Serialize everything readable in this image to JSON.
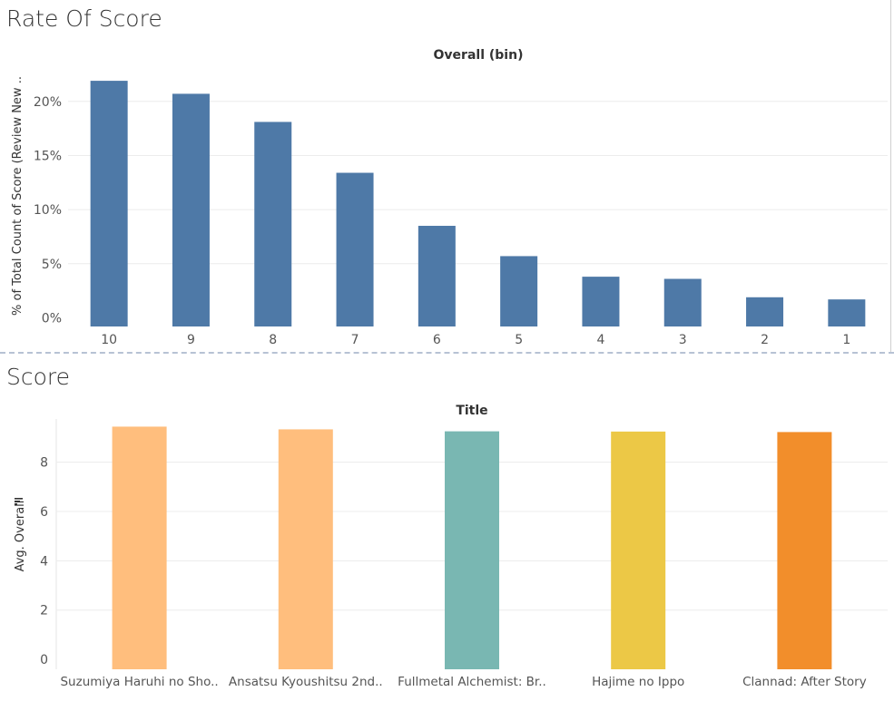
{
  "dashboard": {
    "top_pane_title": "Rate Of Score",
    "bottom_pane_title": "Score"
  },
  "chart_data": [
    {
      "type": "bar",
      "title": "Rate Of Score",
      "column_header": "Overall (bin)",
      "xlabel": "",
      "ylabel": "% of Total Count of Score (Review New ..",
      "categories": [
        "10",
        "9",
        "8",
        "7",
        "6",
        "5",
        "4",
        "3",
        "2",
        "1"
      ],
      "values": [
        21.9,
        20.7,
        18.1,
        13.4,
        8.5,
        5.7,
        3.8,
        3.6,
        1.9,
        1.7
      ],
      "y_ticks": [
        0,
        5,
        10,
        15,
        20
      ],
      "y_tick_labels": [
        "0%",
        "5%",
        "10%",
        "15%",
        "20%"
      ],
      "ylim": [
        -0.8,
        23.5
      ],
      "grid": true,
      "color": "#4e79a7"
    },
    {
      "type": "bar",
      "title": "Score",
      "column_header": "Title",
      "xlabel": "",
      "ylabel": "Avg. Overall",
      "categories": [
        "Suzumiya Haruhi no Sho..",
        "Ansatsu Kyoushitsu 2nd..",
        "Fullmetal Alchemist: Br..",
        "Hajime no Ippo",
        "Clannad: After Story"
      ],
      "values": [
        9.44,
        9.33,
        9.25,
        9.24,
        9.22
      ],
      "colors": [
        "#ffbe7d",
        "#ffbe7d",
        "#79b7b2",
        "#ecc846",
        "#f28e2b"
      ],
      "y_ticks": [
        0,
        2,
        4,
        6,
        8
      ],
      "ylim": [
        -0.4,
        9.75
      ],
      "grid": true
    }
  ]
}
